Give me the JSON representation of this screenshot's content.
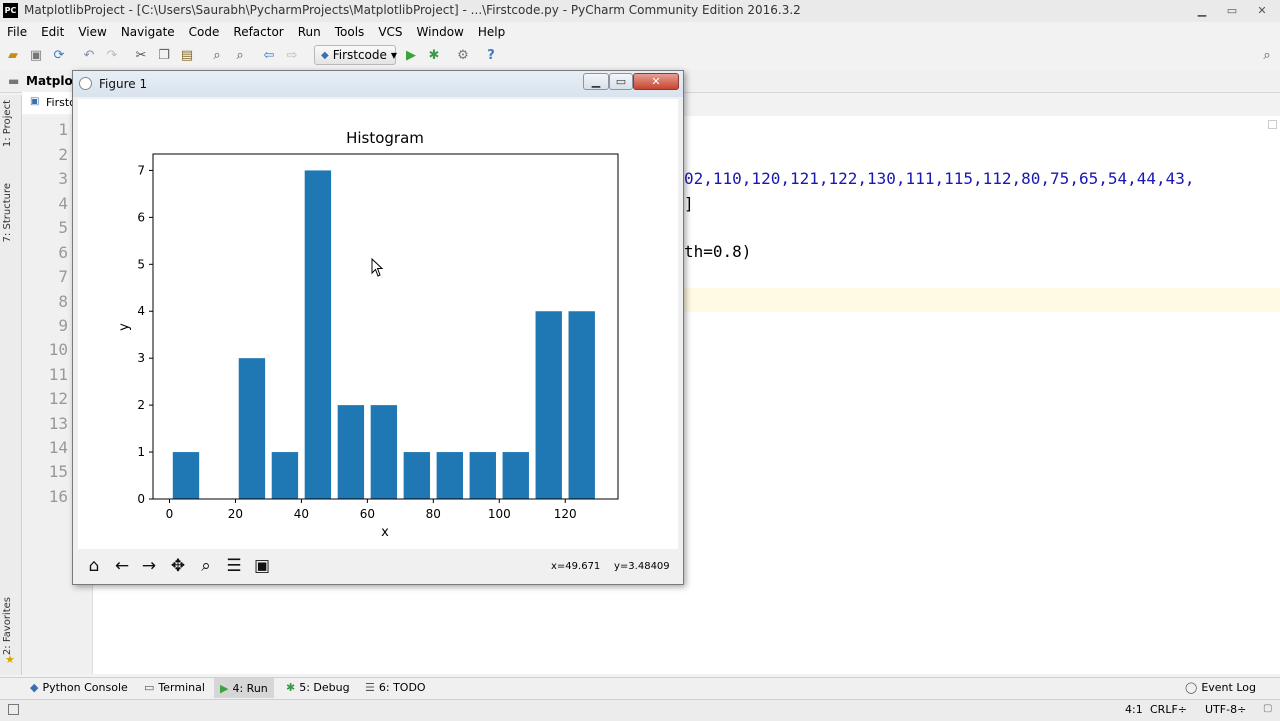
{
  "window": {
    "title": "MatplotlibProject - [C:\\Users\\Saurabh\\PycharmProjects\\MatplotlibProject] - ...\\Firstcode.py - PyCharm Community Edition 2016.3.2",
    "app_icon": "PC"
  },
  "menu": [
    "File",
    "Edit",
    "View",
    "Navigate",
    "Code",
    "Refactor",
    "Run",
    "Tools",
    "VCS",
    "Window",
    "Help"
  ],
  "toolbar": {
    "run_config": "Firstcode"
  },
  "navbar": {
    "project_crumb": "Matplotl",
    "file_tab": "Firstc"
  },
  "left_tabs": {
    "project": "1: Project",
    "structure": "7: Structure",
    "favorites": "2: Favorites"
  },
  "editor": {
    "line_numbers": [
      "1",
      "2",
      "3",
      "4",
      "5",
      "6",
      "7",
      "8",
      "9",
      "10",
      "11",
      "12",
      "13",
      "14",
      "15",
      "16"
    ],
    "code_line3": "02,110,120,121,122,130,111,115,112,80,75,65,54,44,43,",
    "code_line4": "]",
    "code_line6": "th=0.8)"
  },
  "bottom_tabs": {
    "python_console": "Python Console",
    "terminal": "Terminal",
    "run": "4: Run",
    "debug": "5: Debug",
    "todo": "6: TODO",
    "event_log": "Event Log"
  },
  "status": {
    "position": "4:1",
    "line_sep": "CRLF÷",
    "encoding": "UTF-8÷"
  },
  "figure": {
    "title": "Figure 1",
    "coord_x": "x=49.671",
    "coord_y": "y=3.48409",
    "icons": [
      "home-icon",
      "back-icon",
      "forward-icon",
      "pan-icon",
      "zoom-icon",
      "configure-icon",
      "save-icon"
    ]
  },
  "chart_data": {
    "type": "bar",
    "title": "Histogram",
    "xlabel": "x",
    "ylabel": "y",
    "x": [
      5,
      25,
      35,
      45,
      55,
      65,
      75,
      85,
      95,
      105,
      115,
      125
    ],
    "values": [
      1,
      3,
      1,
      7,
      2,
      2,
      1,
      1,
      1,
      1,
      4,
      4
    ],
    "bar_width": 8,
    "xlim": [
      -5,
      136
    ],
    "ylim": [
      0,
      7.35
    ],
    "xticks": [
      0,
      20,
      40,
      60,
      80,
      100,
      120
    ],
    "yticks": [
      0,
      1,
      2,
      3,
      4,
      5,
      6,
      7
    ],
    "color": "#1f77b4",
    "grid": false
  }
}
